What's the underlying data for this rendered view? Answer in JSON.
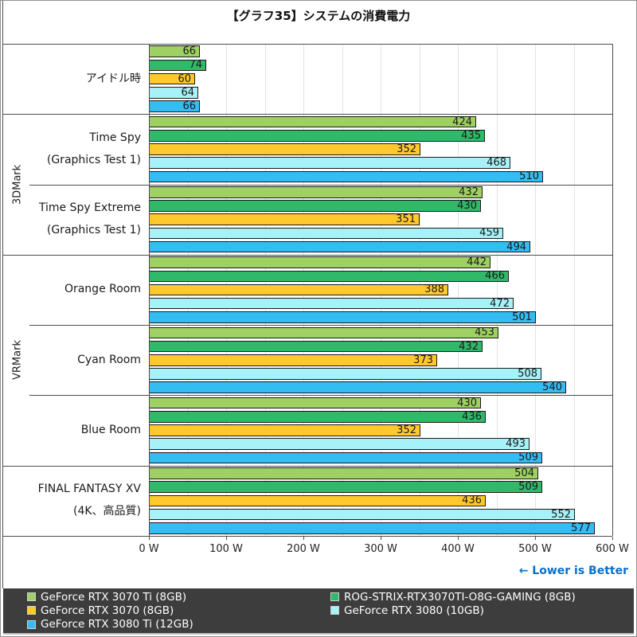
{
  "title": "【グラフ35】システムの消費電力",
  "note": "← Lower is Better",
  "chart_data": {
    "type": "bar",
    "orientation": "horizontal",
    "title": "【グラフ35】システムの消費電力",
    "xlabel": "W",
    "xlim": [
      0,
      600
    ],
    "x_tick_labels": [
      "0 W",
      "100 W",
      "200 W",
      "300 W",
      "400 W",
      "500 W",
      "600 W"
    ],
    "x_tick_values": [
      0,
      100,
      200,
      300,
      400,
      500,
      600
    ],
    "minor_grid_step": 50,
    "grid": "on",
    "categories": [
      {
        "group": "",
        "label_lines": [
          "アイドル時"
        ]
      },
      {
        "group": "3DMark",
        "label_lines": [
          "Time Spy",
          "(Graphics Test 1)"
        ]
      },
      {
        "group": "3DMark",
        "label_lines": [
          "Time Spy Extreme",
          "(Graphics Test 1)"
        ]
      },
      {
        "group": "VRMark",
        "label_lines": [
          "Orange Room"
        ]
      },
      {
        "group": "VRMark",
        "label_lines": [
          "Cyan Room"
        ]
      },
      {
        "group": "VRMark",
        "label_lines": [
          "Blue Room"
        ]
      },
      {
        "group": "",
        "label_lines": [
          "FINAL FANTASY XV",
          "(4K、高品質)"
        ]
      }
    ],
    "group_labels": [
      {
        "label": "3DMark",
        "start": 1,
        "end": 2
      },
      {
        "label": "VRMark",
        "start": 3,
        "end": 5
      }
    ],
    "series": [
      {
        "name": "GeForce RTX 3070 Ti (8GB)",
        "color": "#9fd162",
        "values": [
          66,
          424,
          432,
          442,
          453,
          430,
          504
        ]
      },
      {
        "name": "ROG-STRIX-RTX3070TI-O8G-GAMING (8GB)",
        "color": "#30b968",
        "values": [
          74,
          435,
          430,
          466,
          432,
          436,
          509
        ]
      },
      {
        "name": "GeForce RTX 3070 (8GB)",
        "color": "#ffc92e",
        "values": [
          60,
          352,
          351,
          388,
          373,
          352,
          436
        ]
      },
      {
        "name": "GeForce RTX 3080 (10GB)",
        "color": "#a6f2f8",
        "values": [
          64,
          468,
          459,
          472,
          508,
          493,
          552
        ]
      },
      {
        "name": "GeForce RTX 3080 Ti (12GB)",
        "color": "#33bdf2",
        "values": [
          66,
          510,
          494,
          501,
          540,
          509,
          577
        ]
      }
    ]
  },
  "legend": {
    "items": [
      {
        "label": "GeForce RTX 3070 Ti (8GB)",
        "color": "#9fd162"
      },
      {
        "label": "GeForce RTX 3070 (8GB)",
        "color": "#ffc92e"
      },
      {
        "label": "GeForce RTX 3080 Ti (12GB)",
        "color": "#33bdf2"
      },
      {
        "label": "ROG-STRIX-RTX3070TI-O8G-GAMING (8GB)",
        "color": "#30b968"
      },
      {
        "label": "GeForce RTX 3080 (10GB)",
        "color": "#a6f2f8"
      }
    ]
  },
  "colors": {
    "plot_line": "#4d4d4d",
    "gridline": "#e3e3e3",
    "note_blue": "#0b6fc7",
    "legend_bg": "#3d3d3d"
  }
}
